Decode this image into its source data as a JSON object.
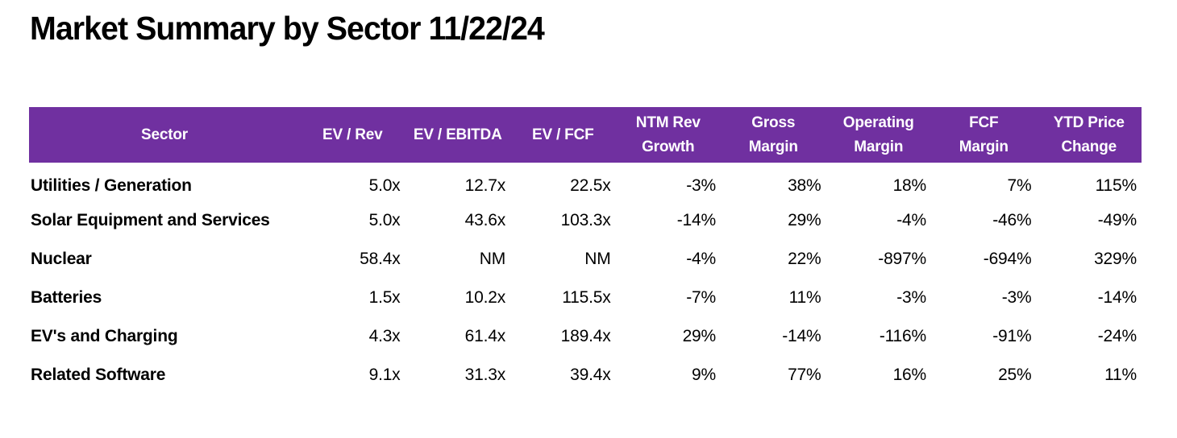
{
  "colors": {
    "header_bg": "#7030A0",
    "header_text": "#FFFFFF",
    "body_text": "#000000",
    "background": "#FFFFFF"
  },
  "chart_data": {
    "type": "table",
    "title": "Market Summary by Sector 11/22/24",
    "date_shown_in_title": "11/22/24",
    "columns": [
      {
        "key": "sector",
        "label": "Sector",
        "align": "left"
      },
      {
        "key": "ev_rev",
        "label": "EV / Rev",
        "align": "right"
      },
      {
        "key": "ev_ebitda",
        "label": "EV / EBITDA",
        "align": "right"
      },
      {
        "key": "ev_fcf",
        "label": "EV / FCF",
        "align": "right"
      },
      {
        "key": "ntm_rev_growth",
        "label": "NTM Rev\nGrowth",
        "align": "right"
      },
      {
        "key": "gross_margin",
        "label": "Gross\nMargin",
        "align": "right"
      },
      {
        "key": "operating_margin",
        "label": "Operating\nMargin",
        "align": "right"
      },
      {
        "key": "fcf_margin",
        "label": "FCF\nMargin",
        "align": "right"
      },
      {
        "key": "ytd_price_change",
        "label": "YTD Price\nChange",
        "align": "right"
      }
    ],
    "rows": [
      {
        "sector": "Utilities / Generation",
        "values": [
          "5.0x",
          "12.7x",
          "22.5x",
          "-3%",
          "38%",
          "18%",
          "7%",
          "115%"
        ]
      },
      {
        "sector": "Solar Equipment and Services",
        "values": [
          "5.0x",
          "43.6x",
          "103.3x",
          "-14%",
          "29%",
          "-4%",
          "-46%",
          "-49%"
        ]
      },
      {
        "sector": "Nuclear",
        "values": [
          "58.4x",
          "NM",
          "NM",
          "-4%",
          "22%",
          "-897%",
          "-694%",
          "329%"
        ]
      },
      {
        "sector": "Batteries",
        "values": [
          "1.5x",
          "10.2x",
          "115.5x",
          "-7%",
          "11%",
          "-3%",
          "-3%",
          "-14%"
        ]
      },
      {
        "sector": "EV's and Charging",
        "values": [
          "4.3x",
          "61.4x",
          "189.4x",
          "29%",
          "-14%",
          "-116%",
          "-91%",
          "-24%"
        ]
      },
      {
        "sector": "Related Software",
        "values": [
          "9.1x",
          "31.3x",
          "39.4x",
          "9%",
          "77%",
          "16%",
          "25%",
          "11%"
        ]
      }
    ]
  }
}
